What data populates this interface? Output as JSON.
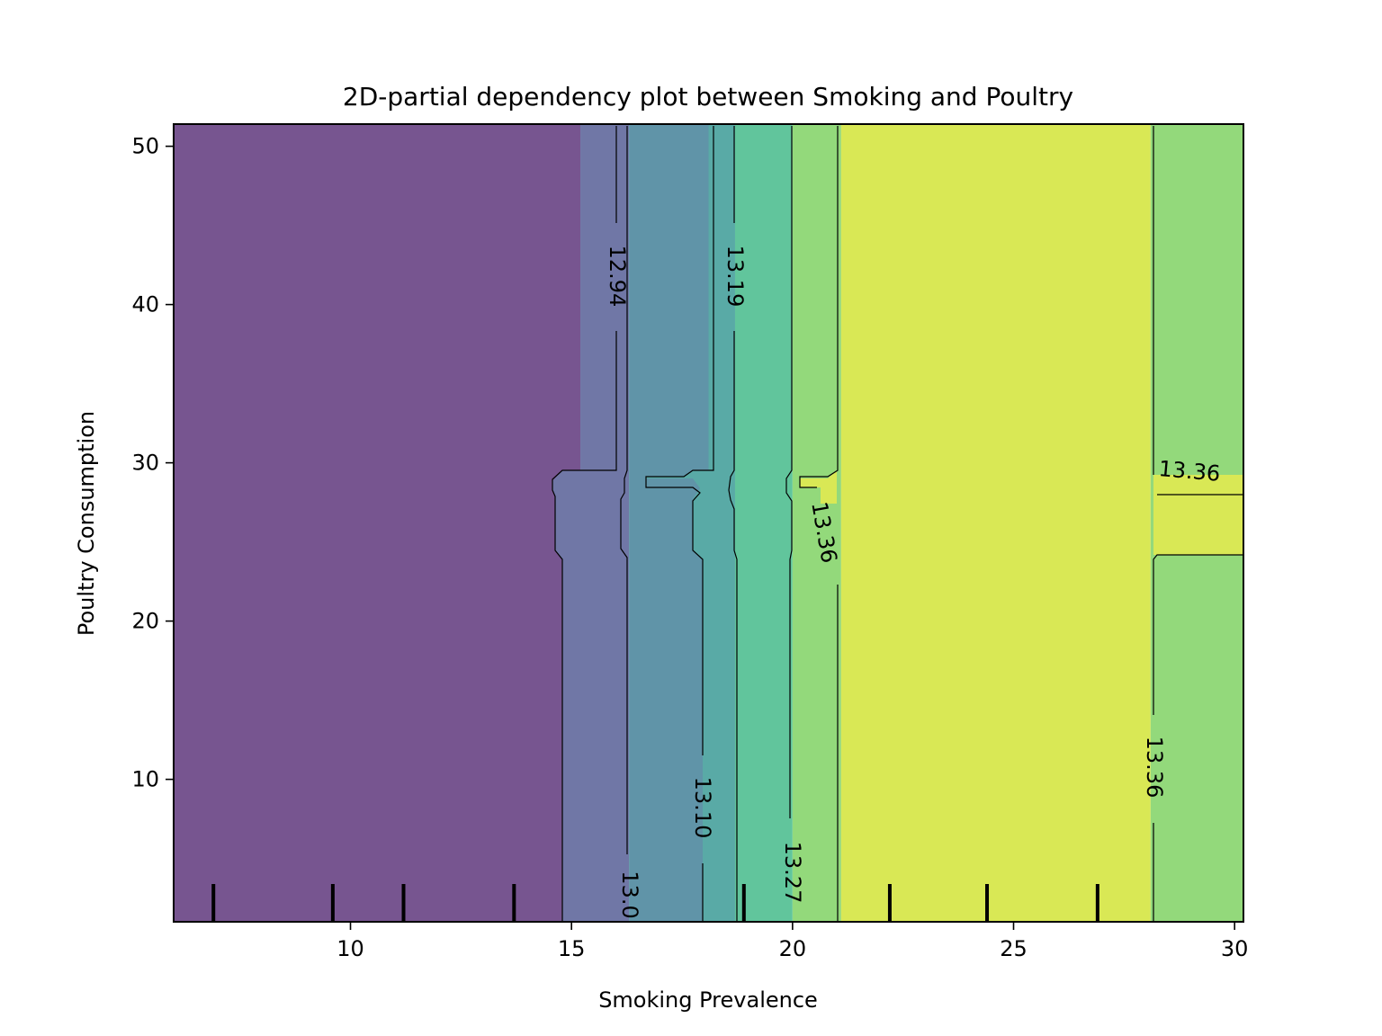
{
  "chart_data": {
    "type": "heatmap",
    "subtype": "contour",
    "title": "2D-partial dependency plot between Smoking and Poultry",
    "xlabel": "Smoking Prevalence",
    "ylabel": "Poultry Consumption",
    "xlim": [
      6.0,
      30.2
    ],
    "ylim": [
      1.0,
      51.4
    ],
    "x_ticks": [
      10,
      15,
      20,
      25,
      30
    ],
    "y_ticks": [
      10,
      20,
      30,
      40,
      50
    ],
    "grid": false,
    "colormap": "viridis",
    "bands": [
      {
        "x_range": [
          6.0,
          15.2
        ],
        "value": 12.9,
        "color": "#775590"
      },
      {
        "x_range": [
          15.2,
          16.3
        ],
        "value": 12.98,
        "color": "#7077a6"
      },
      {
        "x_range": [
          16.3,
          18.1
        ],
        "value": 13.06,
        "color": "#6094a8"
      },
      {
        "x_range": [
          18.1,
          18.7
        ],
        "value": 13.14,
        "color": "#59aaa6"
      },
      {
        "x_range": [
          18.7,
          20.0
        ],
        "value": 13.23,
        "color": "#61c59c"
      },
      {
        "x_range": [
          20.0,
          21.1
        ],
        "value": 13.32,
        "color": "#93d97b"
      },
      {
        "x_range": [
          21.1,
          28.1
        ],
        "value": 13.4,
        "color": "#d9e855"
      },
      {
        "x_range": [
          28.1,
          30.2
        ],
        "value": 13.32,
        "color": "#93d97b"
      }
    ],
    "contour_levels": [
      12.94,
      13.02,
      13.1,
      13.19,
      13.27,
      13.36
    ],
    "contour_labels": [
      {
        "text": "12.94"
      },
      {
        "text": "13.0"
      },
      {
        "text": "13.10"
      },
      {
        "text": "13.19"
      },
      {
        "text": "13.27"
      },
      {
        "text": "13.36"
      },
      {
        "text": "13.36"
      },
      {
        "text": "13.36"
      }
    ],
    "deciles_x": [
      6.9,
      9.6,
      11.2,
      13.7,
      18.9,
      22.2,
      24.4,
      26.9
    ]
  }
}
